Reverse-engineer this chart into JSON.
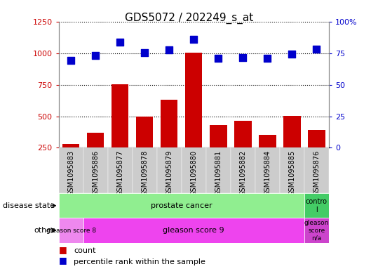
{
  "title": "GDS5072 / 202249_s_at",
  "samples": [
    "GSM1095883",
    "GSM1095886",
    "GSM1095877",
    "GSM1095878",
    "GSM1095879",
    "GSM1095880",
    "GSM1095881",
    "GSM1095882",
    "GSM1095884",
    "GSM1095885",
    "GSM1095876"
  ],
  "counts": [
    280,
    370,
    755,
    500,
    630,
    1005,
    430,
    465,
    350,
    505,
    390
  ],
  "percentile_vals_on_left_scale": [
    945,
    985,
    1090,
    1005,
    1030,
    1110,
    960,
    970,
    960,
    995,
    1035
  ],
  "ylim_left": [
    250,
    1250
  ],
  "ylim_right": [
    0,
    100
  ],
  "yticks_left": [
    250,
    500,
    750,
    1000,
    1250
  ],
  "yticks_right": [
    0,
    25,
    50,
    75,
    100
  ],
  "bar_color": "#cc0000",
  "dot_color": "#0000cc",
  "dot_size": 45,
  "disease_state_colors": [
    "#90ee90",
    "#44cc66"
  ],
  "other_colors_g8": "#ee88ee",
  "other_colors_g9": "#ee44ee",
  "other_colors_gna": "#cc44cc",
  "grid_color": "#000000",
  "grid_linestyle": ":",
  "grid_linewidth": 0.8,
  "background_color": "#ffffff",
  "plot_bg_color": "#ffffff",
  "left_label_color": "#cc0000",
  "right_label_color": "#0000cc"
}
